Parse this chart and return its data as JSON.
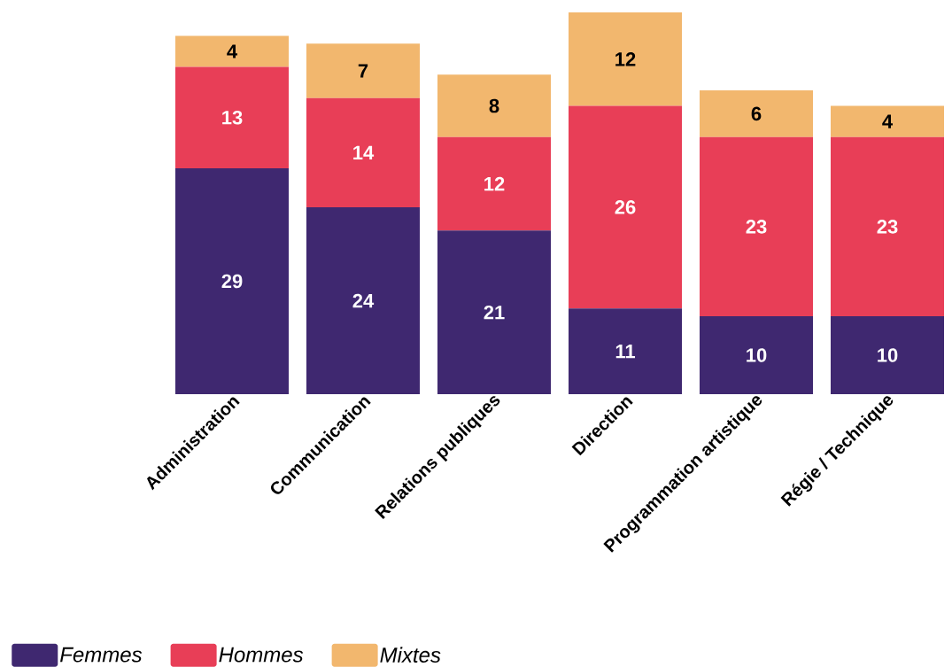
{
  "chart_data": {
    "type": "bar",
    "stacked": true,
    "data_labels": true,
    "legend": "bottom left",
    "categories": [
      "Administration",
      "Communication",
      "Relations publiques",
      "Direction",
      "Programmation artistique",
      "Régie / Technique"
    ],
    "series": [
      {
        "name": "Femmes",
        "color": "#3f2870",
        "values": [
          29,
          24,
          21,
          11,
          10,
          10
        ]
      },
      {
        "name": "Hommes",
        "color": "#e83e57",
        "values": [
          13,
          14,
          12,
          26,
          23,
          23
        ]
      },
      {
        "name": "Mixtes",
        "color": "#f2b76e",
        "values": [
          4,
          7,
          8,
          12,
          6,
          4
        ]
      }
    ]
  }
}
